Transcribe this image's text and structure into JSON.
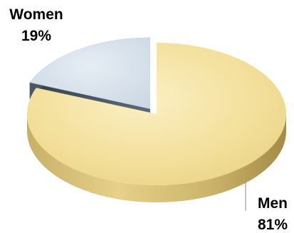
{
  "chart_data": {
    "type": "pie",
    "style": "3d-exploded",
    "categories": [
      "Women",
      "Men"
    ],
    "values": [
      19,
      81
    ],
    "labels": [
      {
        "name": "Women",
        "percent": "19%"
      },
      {
        "name": "Men",
        "percent": "81%"
      }
    ],
    "exploded": "Women",
    "legend": "none",
    "colors": {
      "Women": {
        "top": "#d9e3ee",
        "side": "#4a5866"
      },
      "Men": {
        "top": "#f3df9a",
        "side": "#cdb56a"
      }
    }
  }
}
